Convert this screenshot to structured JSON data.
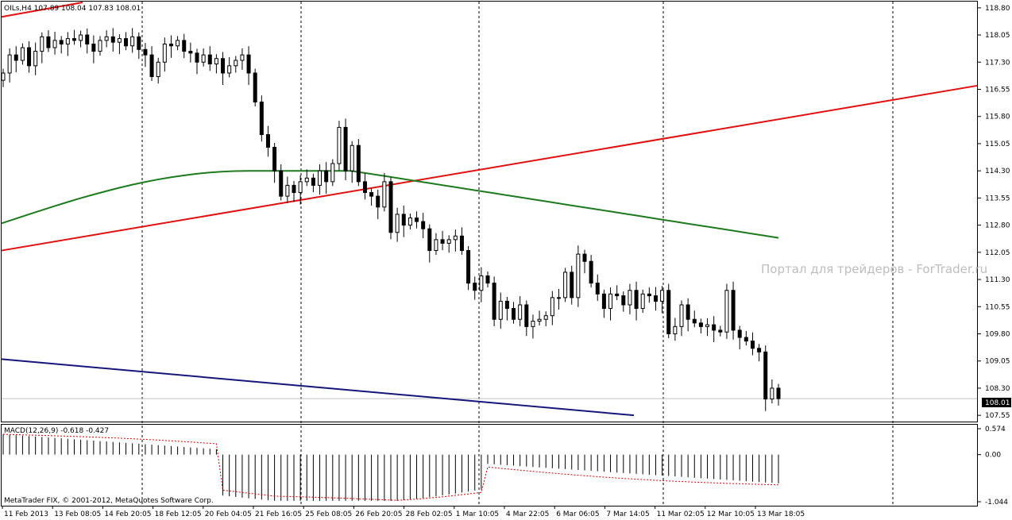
{
  "header": {
    "symbol_line": "OILs,H4  107.89 108.04 107.83 108.01"
  },
  "watermark": "Портал для трейдеров - ForTrader.ru",
  "copyright": "MetaTrader FIX, © 2001-2012, MetaQuotes Software Corp.",
  "colors": {
    "background": "#ffffff",
    "candle": "#000000",
    "grid_dash": "#000000",
    "trend_red": "#e01010",
    "ma_green": "#1e7a1e",
    "channel_blue": "#16167a",
    "macd_signal": "#cc0000",
    "price_line": "#c0c0c0"
  },
  "chart_data": [
    {
      "type": "candlestick",
      "title": "OILs,H4",
      "ohlc_header": {
        "open": 107.89,
        "high": 108.04,
        "low": 107.83,
        "close": 108.01
      },
      "current_price": 108.01,
      "ylim": [
        107.4,
        118.95
      ],
      "y_ticks": [
        118.8,
        118.05,
        117.3,
        116.55,
        115.8,
        115.05,
        114.3,
        113.55,
        112.8,
        112.05,
        111.3,
        110.55,
        109.8,
        109.05,
        108.3,
        107.55
      ],
      "x_labels": [
        "11 Feb 2013",
        "13 Feb 08:05",
        "14 Feb 20:05",
        "18 Feb 12:05",
        "20 Feb 04:05",
        "21 Feb 16:05",
        "25 Feb 08:05",
        "26 Feb 20:05",
        "28 Feb 02:05",
        "1 Mar 10:05",
        "4 Mar 22:05",
        "6 Mar 06:05",
        "7 Mar 14:05",
        "11 Mar 02:05",
        "12 Mar 10:05",
        "13 Mar 18:05"
      ],
      "closes": [
        117.0,
        117.5,
        117.35,
        117.7,
        117.2,
        117.6,
        118.0,
        117.7,
        117.9,
        117.8,
        117.95,
        117.9,
        118.05,
        117.8,
        117.6,
        117.9,
        118.0,
        117.85,
        117.95,
        117.75,
        118.0,
        117.65,
        117.5,
        116.9,
        117.3,
        117.8,
        117.75,
        117.9,
        117.6,
        117.55,
        117.3,
        117.5,
        117.25,
        117.4,
        117.0,
        117.2,
        117.35,
        117.5,
        117.0,
        116.2,
        115.3,
        114.95,
        114.3,
        113.6,
        113.9,
        113.7,
        114.0,
        114.1,
        113.9,
        114.3,
        114.0,
        114.5,
        115.5,
        114.3,
        115.0,
        114.0,
        113.7,
        113.6,
        113.3,
        114.0,
        112.6,
        113.1,
        112.8,
        113.0,
        112.9,
        112.7,
        112.1,
        112.4,
        112.3,
        112.4,
        112.5,
        112.1,
        111.2,
        111.0,
        111.4,
        111.2,
        110.2,
        110.7,
        110.5,
        110.2,
        110.6,
        110.0,
        110.15,
        110.2,
        110.3,
        110.8,
        110.8,
        111.5,
        110.8,
        112.0,
        111.8,
        111.2,
        110.9,
        110.5,
        110.9,
        110.85,
        110.6,
        111.0,
        110.5,
        110.9,
        110.85,
        110.7,
        111.0,
        109.8,
        110.0,
        110.6,
        110.2,
        110.1,
        110.0,
        110.05,
        109.9,
        109.85,
        111.0,
        109.9,
        109.7,
        109.6,
        109.4,
        109.3,
        108.0,
        108.3,
        108.01
      ],
      "moving_average": {
        "start": 112.85,
        "peak": 114.3,
        "end": 112.45
      },
      "trend_lines": [
        {
          "color": "red",
          "from": 112.1,
          "to": 116.65
        },
        {
          "color": "blue",
          "from": 109.1,
          "to": 107.55
        }
      ]
    },
    {
      "type": "bar",
      "title": "MACD(12,26,9) -0.618 -0.427",
      "macd_fast": 12,
      "macd_slow": 26,
      "macd_signal": 9,
      "last_main": -0.618,
      "last_signal": -0.427,
      "ylim": [
        -1.044,
        0.574
      ],
      "y_ticks": [
        0.574,
        0.0,
        -1.044
      ]
    }
  ]
}
